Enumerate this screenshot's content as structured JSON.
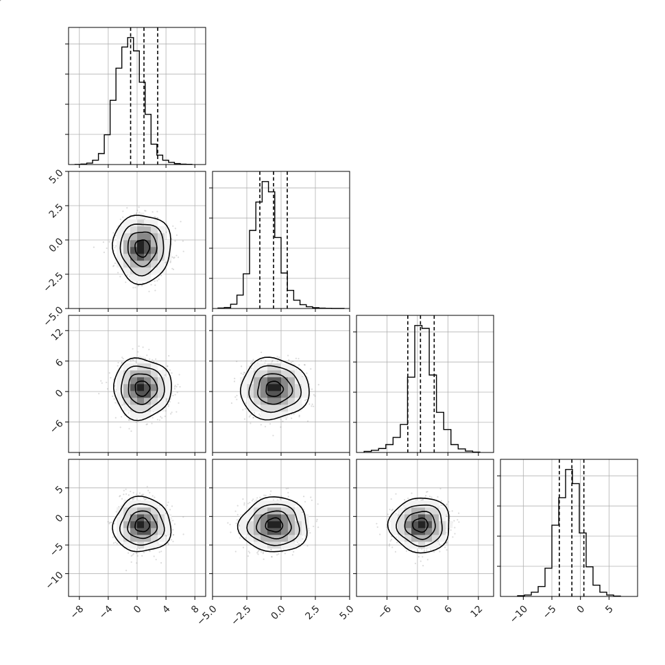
{
  "chart_data": {
    "type": "corner",
    "grid": true,
    "parameters": [
      {
        "range": [
          -9.5,
          9.5
        ],
        "ticks": [
          -8,
          -4,
          0,
          4,
          8
        ],
        "tick_labels": [
          "−8",
          "−4",
          "0",
          "4",
          "8"
        ],
        "quantiles": [
          -0.9,
          0.95,
          2.85
        ],
        "hist_counts": [
          2,
          6,
          18,
          55,
          140,
          380,
          820,
          1230,
          1500,
          1620,
          1450,
          1050,
          640,
          260,
          120,
          55,
          28,
          12,
          5,
          3
        ],
        "hist_edges": [
          -8.6,
          7.6
        ]
      },
      {
        "range": [
          -5.0,
          5.0
        ],
        "ticks": [
          -5.0,
          -2.5,
          0.0,
          2.5,
          5.0
        ],
        "tick_labels": [
          "−5.0",
          "−2.5",
          "0.0",
          "2.5",
          "5.0"
        ],
        "quantiles": [
          -1.55,
          -0.55,
          0.45
        ],
        "hist_counts": [
          6,
          12,
          55,
          170,
          440,
          990,
          1350,
          1610,
          1480,
          900,
          450,
          230,
          105,
          48,
          22,
          10,
          5,
          3,
          1,
          1
        ],
        "hist_edges": [
          -4.6,
          4.6
        ]
      },
      {
        "range": [
          -12.0,
          15.0
        ],
        "ticks": [
          -6,
          0,
          6,
          12
        ],
        "tick_labels": [
          "−6",
          "0",
          "6",
          "12"
        ],
        "quantiles": [
          -1.9,
          0.6,
          3.3
        ],
        "hist_counts": [
          15,
          30,
          55,
          110,
          210,
          390,
          1050,
          1770,
          1730,
          1080,
          560,
          320,
          110,
          50,
          20,
          5
        ],
        "hist_edges": [
          -10.5,
          12.3
        ]
      },
      {
        "range": [
          -14.0,
          10.0
        ],
        "ticks": [
          -10,
          -5,
          0,
          5
        ],
        "tick_labels": [
          "−10",
          "−5",
          "0",
          "5"
        ],
        "quantiles": [
          -3.7,
          -1.5,
          0.6
        ],
        "hist_counts": [
          10,
          20,
          60,
          140,
          400,
          1010,
          1400,
          1800,
          1600,
          900,
          420,
          160,
          60,
          20,
          5
        ],
        "hist_edges": [
          -11.0,
          7.0
        ]
      }
    ],
    "correlations": [
      {
        "i": 1,
        "j": 0,
        "mean": [
          0.7,
          -0.6
        ],
        "sigma": [
          2.0,
          1.25
        ]
      },
      {
        "i": 2,
        "j": 0,
        "mean": [
          0.7,
          0.6
        ],
        "sigma": [
          2.0,
          3.0
        ]
      },
      {
        "i": 2,
        "j": 1,
        "mean": [
          -0.5,
          0.5
        ],
        "sigma": [
          1.25,
          3.0
        ]
      },
      {
        "i": 3,
        "j": 0,
        "mean": [
          0.7,
          -1.5
        ],
        "sigma": [
          2.0,
          2.4
        ]
      },
      {
        "i": 3,
        "j": 1,
        "mean": [
          -0.5,
          -1.5
        ],
        "sigma": [
          1.25,
          2.4
        ]
      },
      {
        "i": 3,
        "j": 2,
        "mean": [
          0.6,
          -1.5
        ],
        "sigma": [
          3.0,
          2.4
        ]
      }
    ],
    "contour_levels_sigma": [
      0.5,
      1.0,
      1.5,
      2.0
    ],
    "scatter_points_per_panel": 380
  },
  "colors": {
    "axis": "#000000",
    "grid": "#b0b0b0",
    "scatter": "#999999",
    "density_cells": [
      "#f2f2f2",
      "#d9d9d9",
      "#b5b5b5",
      "#888888",
      "#555555",
      "#222222"
    ]
  }
}
